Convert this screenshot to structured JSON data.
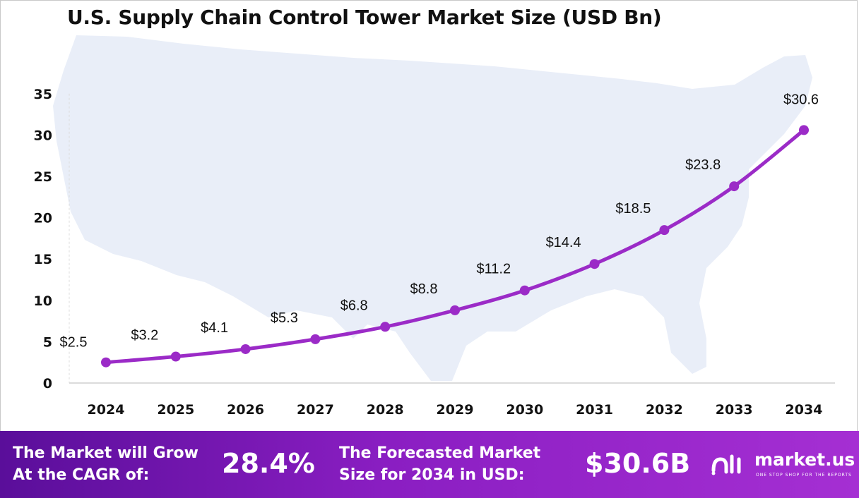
{
  "title": "U.S. Supply Chain Control Tower Market Size (USD Bn)",
  "colors": {
    "line": "#9b2bc7",
    "map": "#e9eef8",
    "axis": "#cfcfcf",
    "footer_start": "#5a0e9a",
    "footer_end": "#a52fd3"
  },
  "chart_data": {
    "type": "line",
    "title": "U.S. Supply Chain Control Tower Market Size (USD Bn)",
    "xlabel": "",
    "ylabel": "",
    "categories": [
      "2024",
      "2025",
      "2026",
      "2027",
      "2028",
      "2029",
      "2030",
      "2031",
      "2032",
      "2033",
      "2034"
    ],
    "values": [
      2.5,
      3.2,
      4.1,
      5.3,
      6.8,
      8.8,
      11.2,
      14.4,
      18.5,
      23.8,
      30.6
    ],
    "data_labels": [
      "$2.5",
      "$3.2",
      "$4.1",
      "$5.3",
      "$6.8",
      "$8.8",
      "$11.2",
      "$14.4",
      "$18.5",
      "$23.8",
      "$30.6"
    ],
    "y_ticks": [
      "0",
      "5",
      "10",
      "15",
      "20",
      "25",
      "30",
      "35"
    ],
    "ylim": [
      0,
      35
    ],
    "grid": false,
    "legend": "none"
  },
  "footer": {
    "cagr_label_line1": "The Market will Grow",
    "cagr_label_line2": "At the CAGR of:",
    "cagr_value": "28.4%",
    "forecast_label_line1": "The Forecasted Market",
    "forecast_label_line2": "Size for 2034 in USD:",
    "forecast_value": "$30.6B",
    "logo_text": "market.us",
    "logo_tagline": "ONE STOP SHOP FOR THE REPORTS"
  }
}
